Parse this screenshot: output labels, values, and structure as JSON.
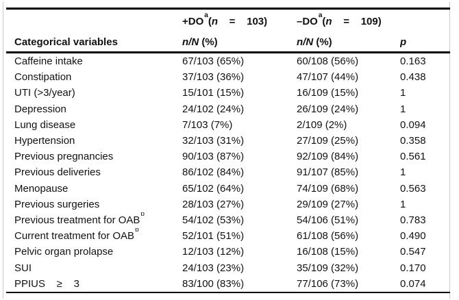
{
  "table": {
    "header": {
      "variables_label": "Categorical variables",
      "group_plus": {
        "pre": "+DO",
        "sup": "a",
        "open": "(",
        "n": "n",
        "eq": "    =    ",
        "num": "103)"
      },
      "group_minus": {
        "pre": "–DO",
        "sup": "a",
        "open": "(",
        "n": "n",
        "eq": "    =    ",
        "num": "109)"
      },
      "subhead": {
        "nN": "n/N",
        "pct": " (%)"
      },
      "p_label": "p"
    },
    "rows": [
      {
        "label": "Caffeine intake",
        "sup": "",
        "plus": "67/103 (65%)",
        "minus": "60/108 (56%)",
        "p": "0.163"
      },
      {
        "label": "Constipation",
        "sup": "",
        "plus": "37/103 (36%)",
        "minus": "47/107 (44%)",
        "p": "0.438"
      },
      {
        "label": "UTI (>3/year)",
        "sup": "",
        "plus": "15/101 (15%)",
        "minus": "16/109 (15%)",
        "p": "1"
      },
      {
        "label": "Depression",
        "sup": "",
        "plus": "24/102 (24%)",
        "minus": "26/109 (24%)",
        "p": "1"
      },
      {
        "label": "Lung disease",
        "sup": "",
        "plus": "7/103 (7%)",
        "minus": "2/109 (2%)",
        "p": "0.094"
      },
      {
        "label": "Hypertension",
        "sup": "",
        "plus": "32/103 (31%)",
        "minus": "27/109 (25%)",
        "p": "0.358"
      },
      {
        "label": "Previous pregnancies",
        "sup": "",
        "plus": "90/103 (87%)",
        "minus": "92/109 (84%)",
        "p": "0.561"
      },
      {
        "label": "Previous deliveries",
        "sup": "",
        "plus": "86/102 (84%)",
        "minus": "91/107 (85%)",
        "p": "1"
      },
      {
        "label": "Menopause",
        "sup": "",
        "plus": "65/102 (64%)",
        "minus": "74/109 (68%)",
        "p": "0.563"
      },
      {
        "label": "Previous surgeries",
        "sup": "",
        "plus": "28/103 (27%)",
        "minus": "29/109 (27%)",
        "p": "1"
      },
      {
        "label": "Previous treatment for OAB",
        "sup": "b",
        "plus": "54/102 (53%)",
        "minus": "54/106 (51%)",
        "p": "0.783"
      },
      {
        "label": "Current treatment for OAB",
        "sup": "b",
        "plus": "52/101 (51%)",
        "minus": "61/108 (56%)",
        "p": "0.490"
      },
      {
        "label": "Pelvic organ prolapse",
        "sup": "",
        "plus": "12/103 (12%)",
        "minus": "16/108 (15%)",
        "p": "0.547"
      },
      {
        "label": "SUI",
        "sup": "",
        "plus": "24/103 (23%)",
        "minus": "35/109 (32%)",
        "p": "0.170"
      },
      {
        "label": "PPIUS    ≥    3",
        "sup": "",
        "plus": "83/100 (83%)",
        "minus": "77/106 (73%)",
        "p": "0.074"
      }
    ]
  }
}
